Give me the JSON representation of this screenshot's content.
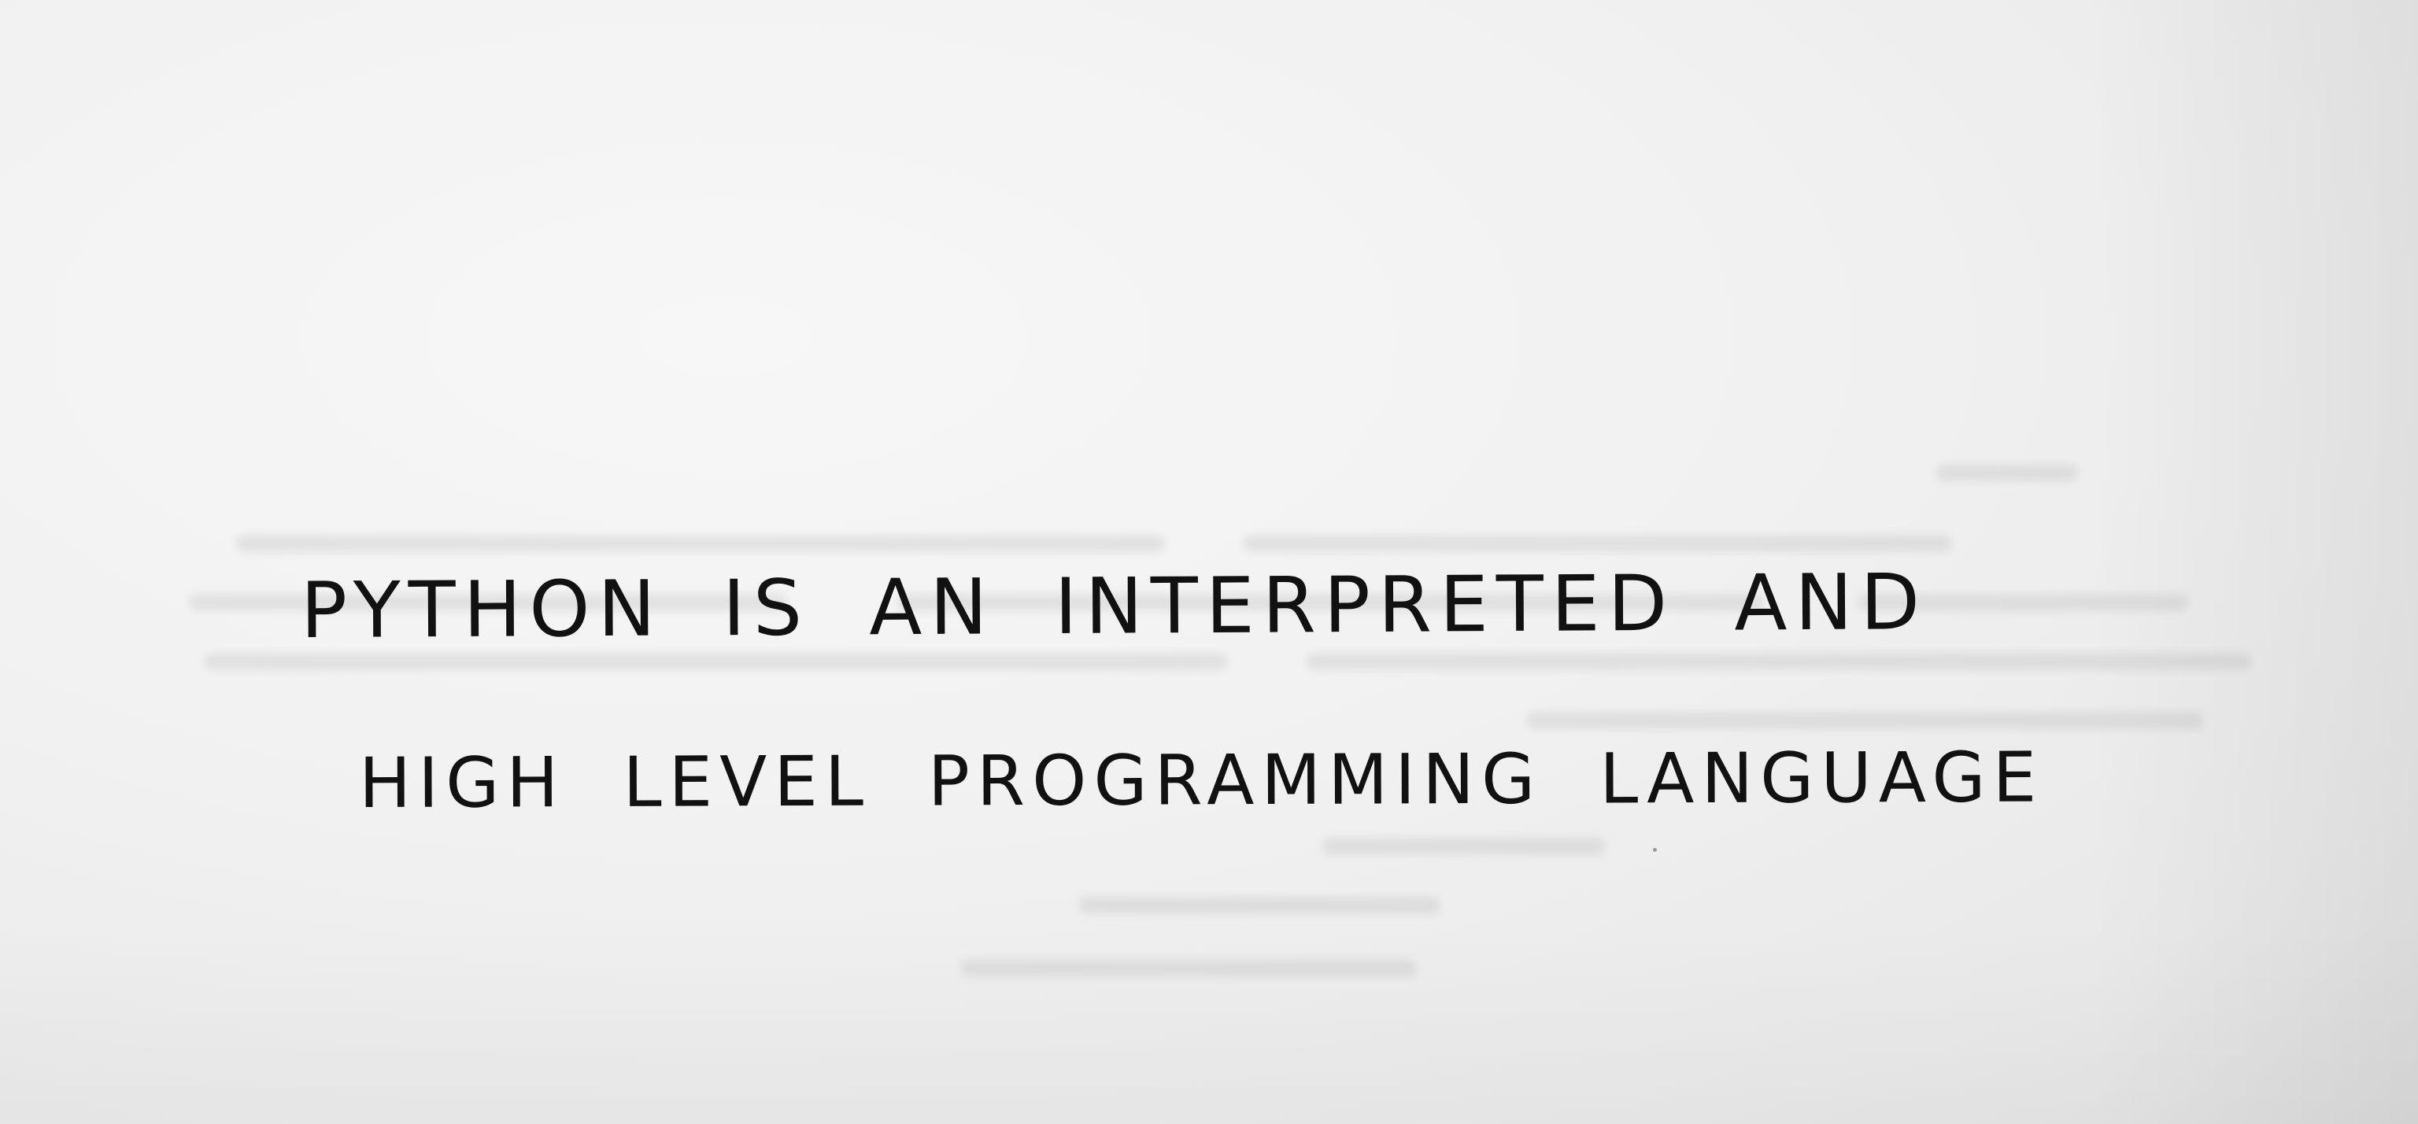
{
  "document": {
    "lines": [
      "Python is an interpreted and",
      "high level programming language"
    ]
  },
  "colors": {
    "paper": "#f2f2f2",
    "ink": "#111111"
  }
}
